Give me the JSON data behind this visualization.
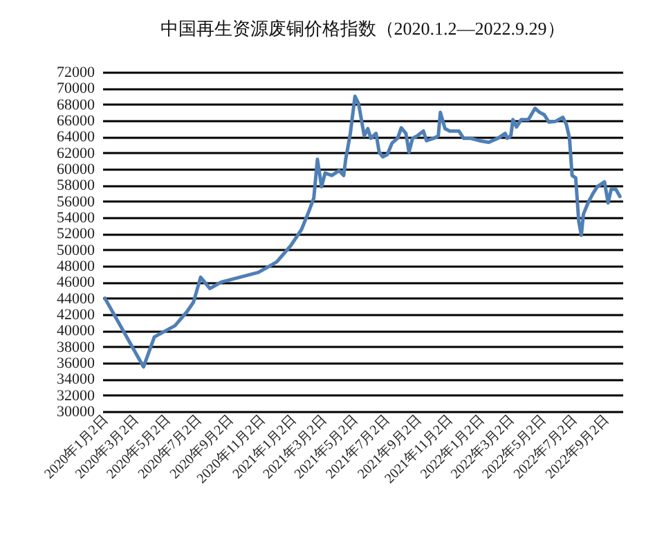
{
  "chart_data": {
    "type": "line",
    "title": "中国再生资源废铜价格指数（2020.1.2—2022.9.29）",
    "x": [
      "2020-01-02",
      "2020-03-17",
      "2020-04-07",
      "2020-04-21",
      "2020-05-17",
      "2020-06-09",
      "2020-06-22",
      "2020-07-06",
      "2020-07-24",
      "2020-08-15",
      "2020-09-20",
      "2020-10-26",
      "2020-11-12",
      "2020-12-01",
      "2020-12-28",
      "2021-01-18",
      "2021-02-01",
      "2021-02-11",
      "2021-02-18",
      "2021-02-26",
      "2021-03-05",
      "2021-03-18",
      "2021-04-01",
      "2021-04-10",
      "2021-04-14",
      "2021-04-23",
      "2021-05-02",
      "2021-05-09",
      "2021-05-20",
      "2021-05-27",
      "2021-06-02",
      "2021-06-12",
      "2021-06-18",
      "2021-06-25",
      "2021-07-04",
      "2021-07-13",
      "2021-07-24",
      "2021-07-31",
      "2021-08-09",
      "2021-08-15",
      "2021-08-22",
      "2021-08-31",
      "2021-09-12",
      "2021-09-18",
      "2021-10-02",
      "2021-10-11",
      "2021-10-15",
      "2021-10-24",
      "2021-11-02",
      "2021-11-20",
      "2021-11-29",
      "2021-12-12",
      "2021-12-30",
      "2022-01-17",
      "2022-02-04",
      "2022-02-18",
      "2022-02-22",
      "2022-03-01",
      "2022-03-05",
      "2022-03-12",
      "2022-03-21",
      "2022-04-04",
      "2022-04-17",
      "2022-04-26",
      "2022-05-05",
      "2022-05-14",
      "2022-05-27",
      "2022-06-10",
      "2022-06-17",
      "2022-06-23",
      "2022-06-28",
      "2022-07-05",
      "2022-07-11",
      "2022-07-16",
      "2022-07-20",
      "2022-07-29",
      "2022-08-07",
      "2022-08-16",
      "2022-08-30",
      "2022-09-06",
      "2022-09-12",
      "2022-09-21",
      "2022-09-29"
    ],
    "series": [
      {
        "color": "#4f7fb5",
        "values": [
          44000,
          35500,
          39200,
          39700,
          40600,
          42300,
          43500,
          46600,
          45200,
          46000,
          46600,
          47200,
          47800,
          48500,
          50500,
          52500,
          54700,
          56400,
          61200,
          57800,
          59500,
          59200,
          59800,
          59200,
          61200,
          64400,
          69000,
          68100,
          64100,
          65000,
          63800,
          64400,
          62100,
          61500,
          61800,
          63200,
          63800,
          65100,
          64400,
          62100,
          63800,
          64100,
          64700,
          63500,
          63800,
          64100,
          67000,
          65000,
          64700,
          64700,
          63800,
          63800,
          63500,
          63300,
          63800,
          64400,
          63800,
          64100,
          66100,
          65200,
          66100,
          66100,
          67500,
          67000,
          66700,
          65800,
          65900,
          66400,
          65500,
          63800,
          59200,
          58900,
          53500,
          51800,
          54400,
          55800,
          56900,
          57800,
          58400,
          55800,
          57500,
          57500,
          56600
        ]
      }
    ],
    "xlim": [
      "2019-12-28",
      "2022-10-04"
    ],
    "xticks": [
      {
        "value": "2020-01-02",
        "label": "2020年1月2日"
      },
      {
        "value": "2020-03-02",
        "label": "2020年3月2日"
      },
      {
        "value": "2020-05-02",
        "label": "2020年5月2日"
      },
      {
        "value": "2020-07-02",
        "label": "2020年7月2日"
      },
      {
        "value": "2020-09-02",
        "label": "2020年9月2日"
      },
      {
        "value": "2020-11-02",
        "label": "2020年11月2日"
      },
      {
        "value": "2021-01-02",
        "label": "2021年1月2日"
      },
      {
        "value": "2021-03-02",
        "label": "2021年3月2日"
      },
      {
        "value": "2021-05-02",
        "label": "2021年5月2日"
      },
      {
        "value": "2021-07-02",
        "label": "2021年7月2日"
      },
      {
        "value": "2021-09-02",
        "label": "2021年9月2日"
      },
      {
        "value": "2021-11-02",
        "label": "2021年11月2日"
      },
      {
        "value": "2022-01-02",
        "label": "2022年1月2日"
      },
      {
        "value": "2022-03-02",
        "label": "2022年3月2日"
      },
      {
        "value": "2022-05-02",
        "label": "2022年5月2日"
      },
      {
        "value": "2022-07-02",
        "label": "2022年7月2日"
      },
      {
        "value": "2022-09-02",
        "label": "2022年9月2日"
      }
    ],
    "ylim": [
      30000,
      72000
    ],
    "yticks": [
      30000,
      32000,
      34000,
      36000,
      38000,
      40000,
      42000,
      44000,
      46000,
      48000,
      50000,
      52000,
      54000,
      56000,
      58000,
      60000,
      62000,
      64000,
      66000,
      68000,
      70000,
      72000
    ],
    "grid": "y"
  }
}
